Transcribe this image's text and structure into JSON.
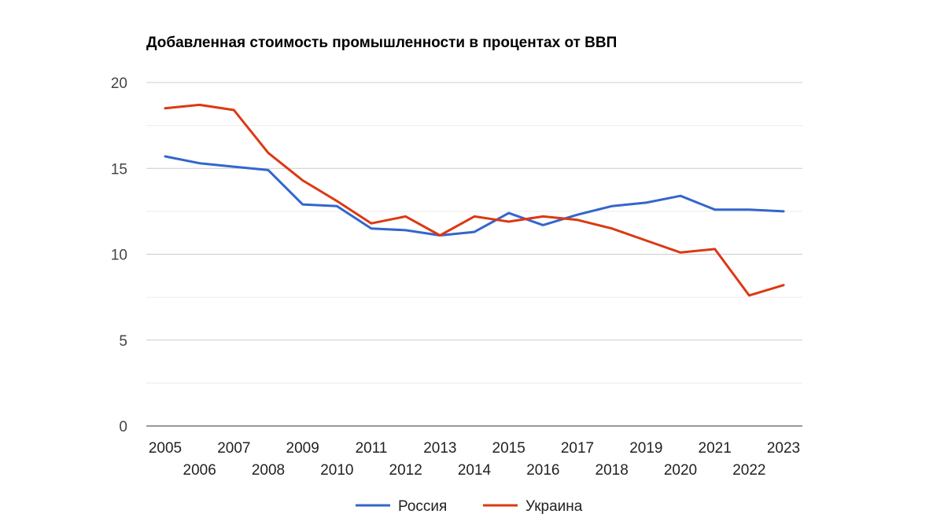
{
  "chart_data": {
    "type": "line",
    "title": "Добавленная стоимость промышленности в процентах от ВВП",
    "xlabel": "",
    "ylabel": "",
    "ylim": [
      0,
      20
    ],
    "yticks": [
      "0",
      "5",
      "10",
      "15",
      "20"
    ],
    "x": [
      "2005",
      "2006",
      "2007",
      "2008",
      "2009",
      "2010",
      "2011",
      "2012",
      "2013",
      "2014",
      "2015",
      "2016",
      "2017",
      "2018",
      "2019",
      "2020",
      "2021",
      "2022",
      "2023"
    ],
    "series": [
      {
        "name": "Россия",
        "color": "#3366cc",
        "values": [
          15.7,
          15.3,
          15.1,
          14.9,
          12.9,
          12.8,
          11.5,
          11.4,
          11.1,
          11.3,
          12.4,
          11.7,
          12.3,
          12.8,
          13.0,
          13.4,
          12.6,
          12.6,
          12.5
        ]
      },
      {
        "name": "Украина",
        "color": "#dc3912",
        "values": [
          18.5,
          18.7,
          18.4,
          15.9,
          14.3,
          13.1,
          11.8,
          12.2,
          11.1,
          12.2,
          11.9,
          12.2,
          12.0,
          11.5,
          10.8,
          10.1,
          10.3,
          7.6,
          8.2
        ]
      }
    ],
    "grid": true,
    "legend_position": "bottom"
  }
}
